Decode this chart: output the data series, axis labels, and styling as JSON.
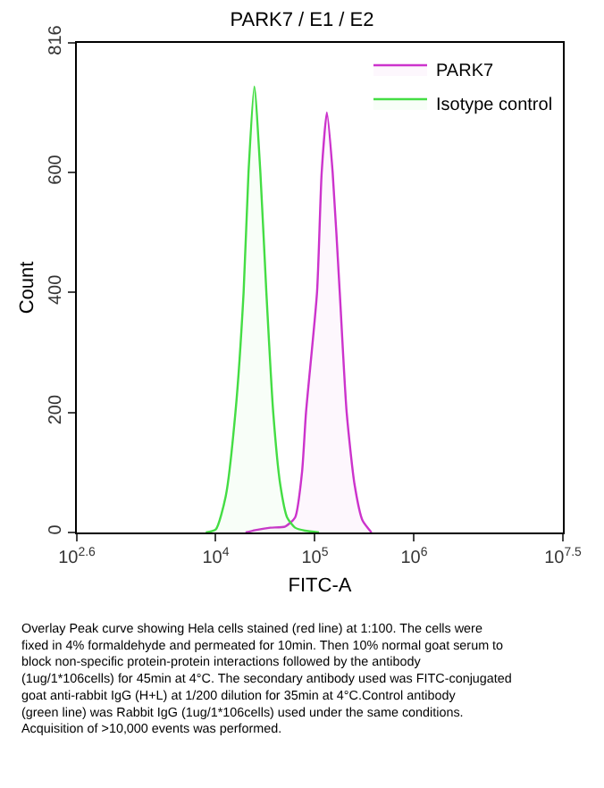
{
  "chart_data": {
    "type": "area",
    "title": "PARK7 / E1 / E2",
    "xlabel": "FITC-A",
    "ylabel": "Count",
    "log": "x",
    "xlim": [
      398,
      31622777
    ],
    "xticks": [
      {
        "value": 398,
        "label": "10$^{2.6}$"
      },
      {
        "value": 10000,
        "label": "10$^{4}$"
      },
      {
        "value": 100000,
        "label": "10$^{5}$"
      },
      {
        "value": 1000000,
        "label": "10$^{6}$"
      },
      {
        "value": 31622777,
        "label": "10$^{7.5}$"
      }
    ],
    "ylim": [
      0,
      816
    ],
    "yticks": [
      0,
      200,
      400,
      600,
      816
    ],
    "legend": "top right",
    "series": [
      {
        "name": "PARK7",
        "color": "#cc33cc",
        "x": [
          20000,
          25100,
          35500,
          50100,
          63100,
          74100,
          81300,
          105000,
          117000,
          132000,
          151000,
          178000,
          209000,
          251000,
          302000,
          372000
        ],
        "values": [
          0,
          4,
          8,
          10,
          25,
          100,
          200,
          400,
          600,
          700,
          600,
          400,
          200,
          80,
          20,
          0
        ]
      },
      {
        "name": "Isotype control",
        "color": "#44dd44",
        "x": [
          7940,
          10000,
          12600,
          15800,
          19100,
          21400,
          24500,
          28200,
          32400,
          38000,
          44700,
          52500,
          63100,
          79400,
          110000
        ],
        "values": [
          0,
          5,
          60,
          200,
          400,
          600,
          743,
          600,
          400,
          200,
          80,
          25,
          8,
          3,
          0
        ]
      }
    ],
    "annotations": [
      "Overlay Peak curve showing Hela cells stained (red line) at 1:100. The cells were fixed in 4% formaldehyde and permeated for 10min. Then 10% normal goat serum to block non-specific protein-protein interactions followed by the antibody (1ug/1*106cells) for 45min at 4°C. The secondary antibody used was FITC-conjugated goat anti-rabbit IgG (H+L) at 1/200 dilution for 35min at 4°C.Control antibody (green line) was Rabbit IgG (1ug/1*106cells) used under the same conditions. Acquisition of >10,000 events was performed."
    ]
  }
}
